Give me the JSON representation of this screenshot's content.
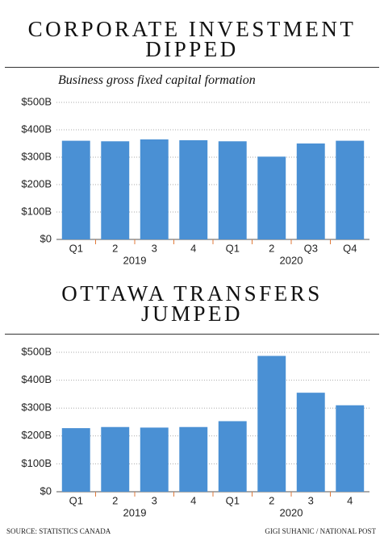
{
  "chart_data": [
    {
      "type": "bar",
      "title": "CORPORATE INVESTMENT DIPPED",
      "subtitle": "Business gross fixed capital formation",
      "categories": [
        "Q1",
        "2",
        "3",
        "4",
        "Q1",
        "2",
        "Q3",
        "Q4"
      ],
      "year_labels": [
        "2019",
        "2020"
      ],
      "values": [
        360,
        358,
        365,
        362,
        358,
        302,
        350,
        360
      ],
      "color": "#4a90d4",
      "ylim": [
        0,
        500
      ],
      "yticks": [
        {
          "value": 0,
          "label": "$0"
        },
        {
          "value": 100,
          "label": "$100B"
        },
        {
          "value": 200,
          "label": "$200B"
        },
        {
          "value": 300,
          "label": "$300B"
        },
        {
          "value": 400,
          "label": "$400B"
        },
        {
          "value": 500,
          "label": "$500B"
        }
      ],
      "grid": true
    },
    {
      "type": "bar",
      "title": "OTTAWA TRANSFERS JUMPED",
      "categories": [
        "Q1",
        "2",
        "3",
        "4",
        "Q1",
        "2",
        "3",
        "4"
      ],
      "year_labels": [
        "2019",
        "2020"
      ],
      "values": [
        228,
        232,
        230,
        232,
        253,
        487,
        355,
        310
      ],
      "color": "#4a90d4",
      "ylim": [
        0,
        500
      ],
      "yticks": [
        {
          "value": 0,
          "label": "$0"
        },
        {
          "value": 100,
          "label": "$100B"
        },
        {
          "value": 200,
          "label": "$200B"
        },
        {
          "value": 300,
          "label": "$300B"
        },
        {
          "value": 400,
          "label": "$400B"
        },
        {
          "value": 500,
          "label": "$500B"
        }
      ],
      "grid": true
    }
  ],
  "source": "SOURCE: STATISTICS CANADA",
  "credit": "GIGI SUHANIC / NATIONAL POST"
}
